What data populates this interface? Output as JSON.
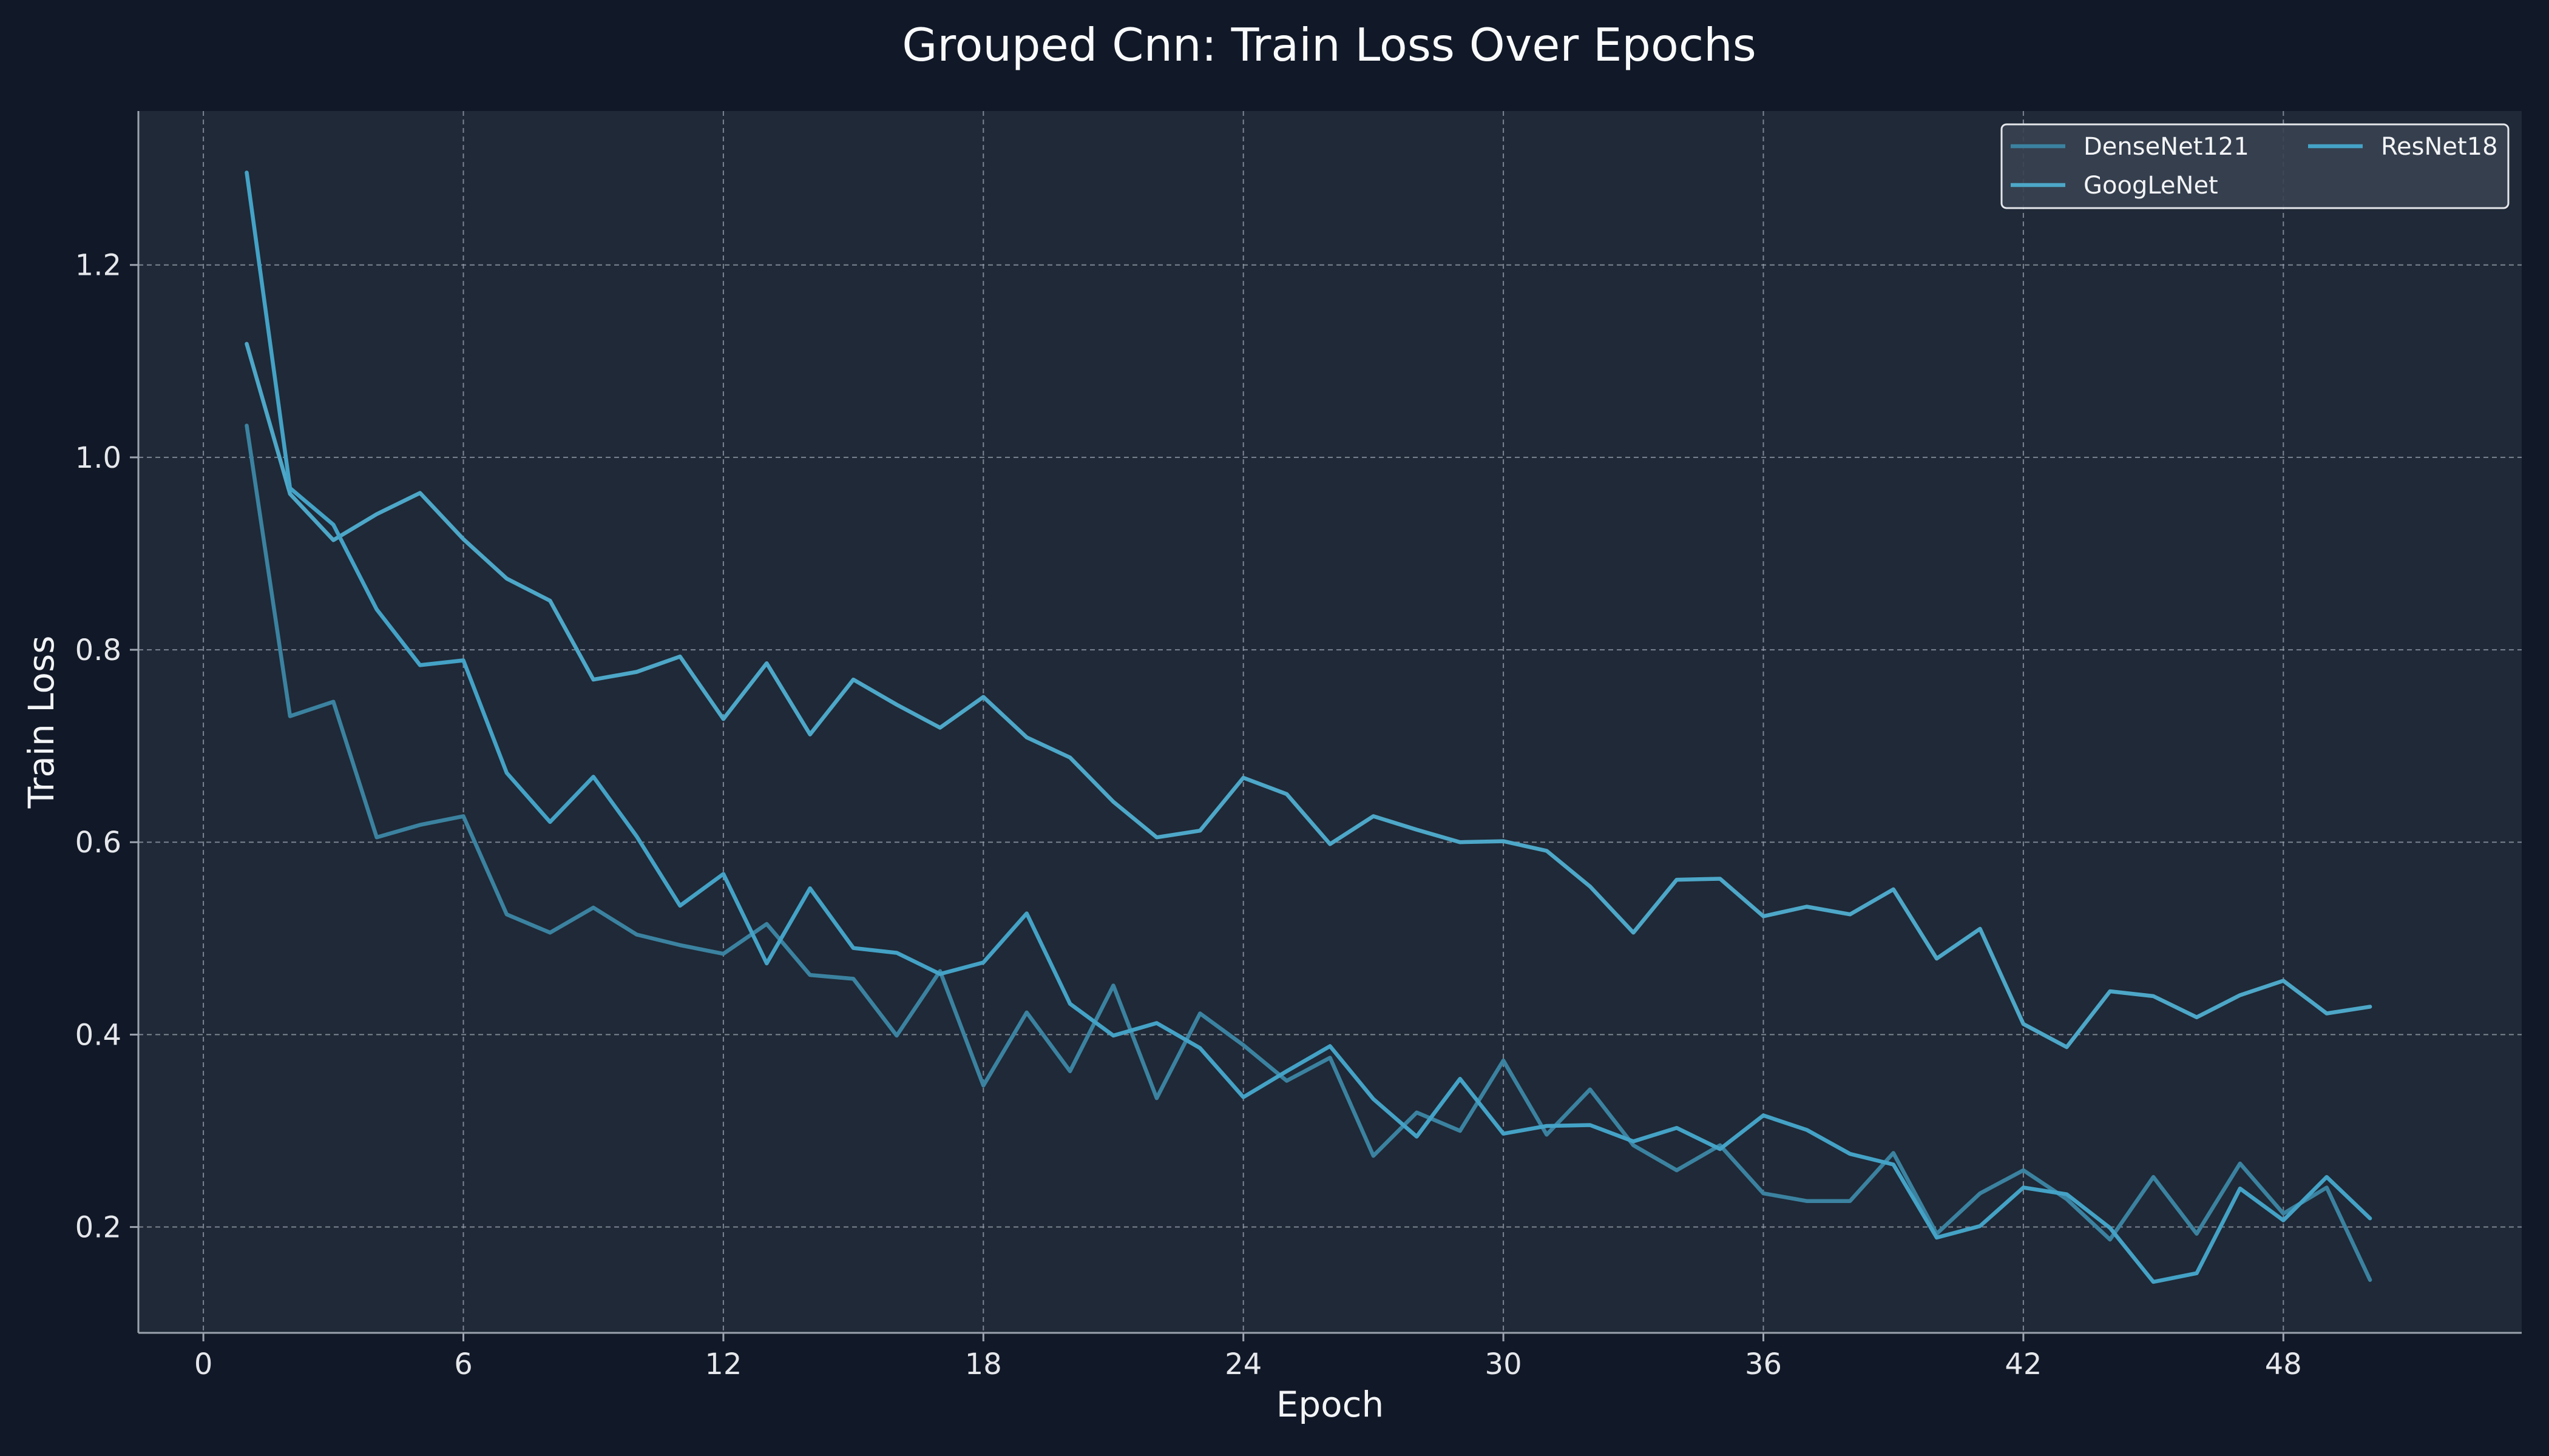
{
  "chart_data": {
    "type": "line",
    "title": "Grouped Cnn: Train Loss Over Epochs",
    "xlabel": "Epoch",
    "ylabel": "Train Loss",
    "xlim": [
      -1.5,
      53.5
    ],
    "ylim": [
      0.09,
      1.36
    ],
    "xticks": [
      0,
      6,
      12,
      18,
      24,
      30,
      36,
      42,
      48
    ],
    "yticks": [
      0.2,
      0.4,
      0.6,
      0.8,
      1.0,
      1.2
    ],
    "ytick_labels": [
      "0.2",
      "0.4",
      "0.6",
      "0.8",
      "1.0",
      "1.2"
    ],
    "grid": true,
    "legend_position": "top-right",
    "legend_columns": 2,
    "colors": {
      "background": "#111827",
      "plot_background": "#1f2937",
      "grid": "#9ca3af",
      "axis": "#9ca3af",
      "legend_bg": "#374151"
    },
    "x": [
      1,
      2,
      3,
      4,
      5,
      6,
      7,
      8,
      9,
      10,
      11,
      12,
      13,
      14,
      15,
      16,
      17,
      18,
      19,
      20,
      21,
      22,
      23,
      24,
      25,
      26,
      27,
      28,
      29,
      30,
      31,
      32,
      33,
      34,
      35,
      36,
      37,
      38,
      39,
      40,
      41,
      42,
      43,
      44,
      45,
      46,
      47,
      48,
      49,
      50
    ],
    "series": [
      {
        "name": "DenseNet121",
        "color": "#3b82a0",
        "values": [
          1.033,
          0.731,
          0.746,
          0.605,
          0.618,
          0.627,
          0.525,
          0.506,
          0.532,
          0.504,
          0.493,
          0.484,
          0.515,
          0.462,
          0.458,
          0.399,
          0.466,
          0.347,
          0.423,
          0.362,
          0.451,
          0.334,
          0.422,
          0.389,
          0.352,
          0.376,
          0.274,
          0.319,
          0.3,
          0.373,
          0.296,
          0.343,
          0.285,
          0.259,
          0.285,
          0.235,
          0.227,
          0.227,
          0.277,
          0.193,
          0.235,
          0.259,
          0.229,
          0.187,
          0.252,
          0.193,
          0.266,
          0.214,
          0.241,
          0.145
        ]
      },
      {
        "name": "GoogLeNet",
        "color": "#4da7c8",
        "values": [
          1.118,
          0.962,
          0.914,
          0.941,
          0.963,
          0.915,
          0.874,
          0.851,
          0.769,
          0.777,
          0.793,
          0.728,
          0.786,
          0.712,
          0.769,
          0.743,
          0.719,
          0.751,
          0.709,
          0.688,
          0.642,
          0.605,
          0.612,
          0.667,
          0.65,
          0.598,
          0.627,
          0.613,
          0.6,
          0.601,
          0.591,
          0.554,
          0.506,
          0.561,
          0.562,
          0.523,
          0.533,
          0.525,
          0.551,
          0.479,
          0.51,
          0.411,
          0.387,
          0.445,
          0.44,
          0.418,
          0.441,
          0.456,
          0.422,
          0.429
        ]
      },
      {
        "name": "ResNet18",
        "color": "#44a2c6",
        "values": [
          1.296,
          0.968,
          0.93,
          0.842,
          0.784,
          0.789,
          0.672,
          0.621,
          0.668,
          0.606,
          0.534,
          0.567,
          0.474,
          0.552,
          0.49,
          0.485,
          0.463,
          0.475,
          0.526,
          0.432,
          0.399,
          0.412,
          0.386,
          0.335,
          0.362,
          0.388,
          0.333,
          0.294,
          0.354,
          0.297,
          0.305,
          0.306,
          0.289,
          0.303,
          0.281,
          0.316,
          0.301,
          0.276,
          0.265,
          0.189,
          0.201,
          0.241,
          0.234,
          0.199,
          0.143,
          0.152,
          0.24,
          0.207,
          0.252,
          0.209
        ]
      }
    ]
  }
}
